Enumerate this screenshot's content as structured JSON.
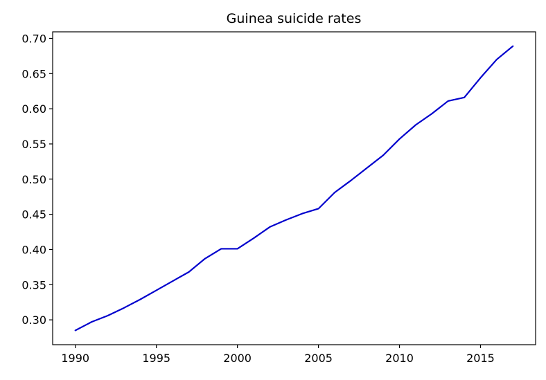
{
  "chart_data": {
    "type": "line",
    "title": "Guinea suicide rates",
    "xlabel": "",
    "ylabel": "",
    "x": [
      1990,
      1991,
      1992,
      1993,
      1994,
      1995,
      1996,
      1997,
      1998,
      1999,
      2000,
      2001,
      2002,
      2003,
      2004,
      2005,
      2006,
      2007,
      2008,
      2009,
      2010,
      2011,
      2012,
      2013,
      2014,
      2015,
      2016,
      2017
    ],
    "series": [
      {
        "values": [
          0.285,
          0.297,
          0.306,
          0.317,
          0.329,
          0.342,
          0.355,
          0.368,
          0.387,
          0.401,
          0.401,
          0.416,
          0.432,
          0.442,
          0.451,
          0.458,
          0.481,
          0.498,
          0.516,
          0.534,
          0.557,
          0.577,
          0.593,
          0.611,
          0.616,
          0.644,
          0.67,
          0.689
        ],
        "color": "#0000cd"
      }
    ],
    "xlim": [
      1988.6,
      2018.4
    ],
    "ylim": [
      0.2647,
      0.7093
    ],
    "xticks": [
      "1990",
      "1995",
      "2000",
      "2005",
      "2010",
      "2015"
    ],
    "yticks": [
      "0.30",
      "0.35",
      "0.40",
      "0.45",
      "0.50",
      "0.55",
      "0.60",
      "0.65",
      "0.70"
    ],
    "grid": false,
    "legend": "none"
  }
}
